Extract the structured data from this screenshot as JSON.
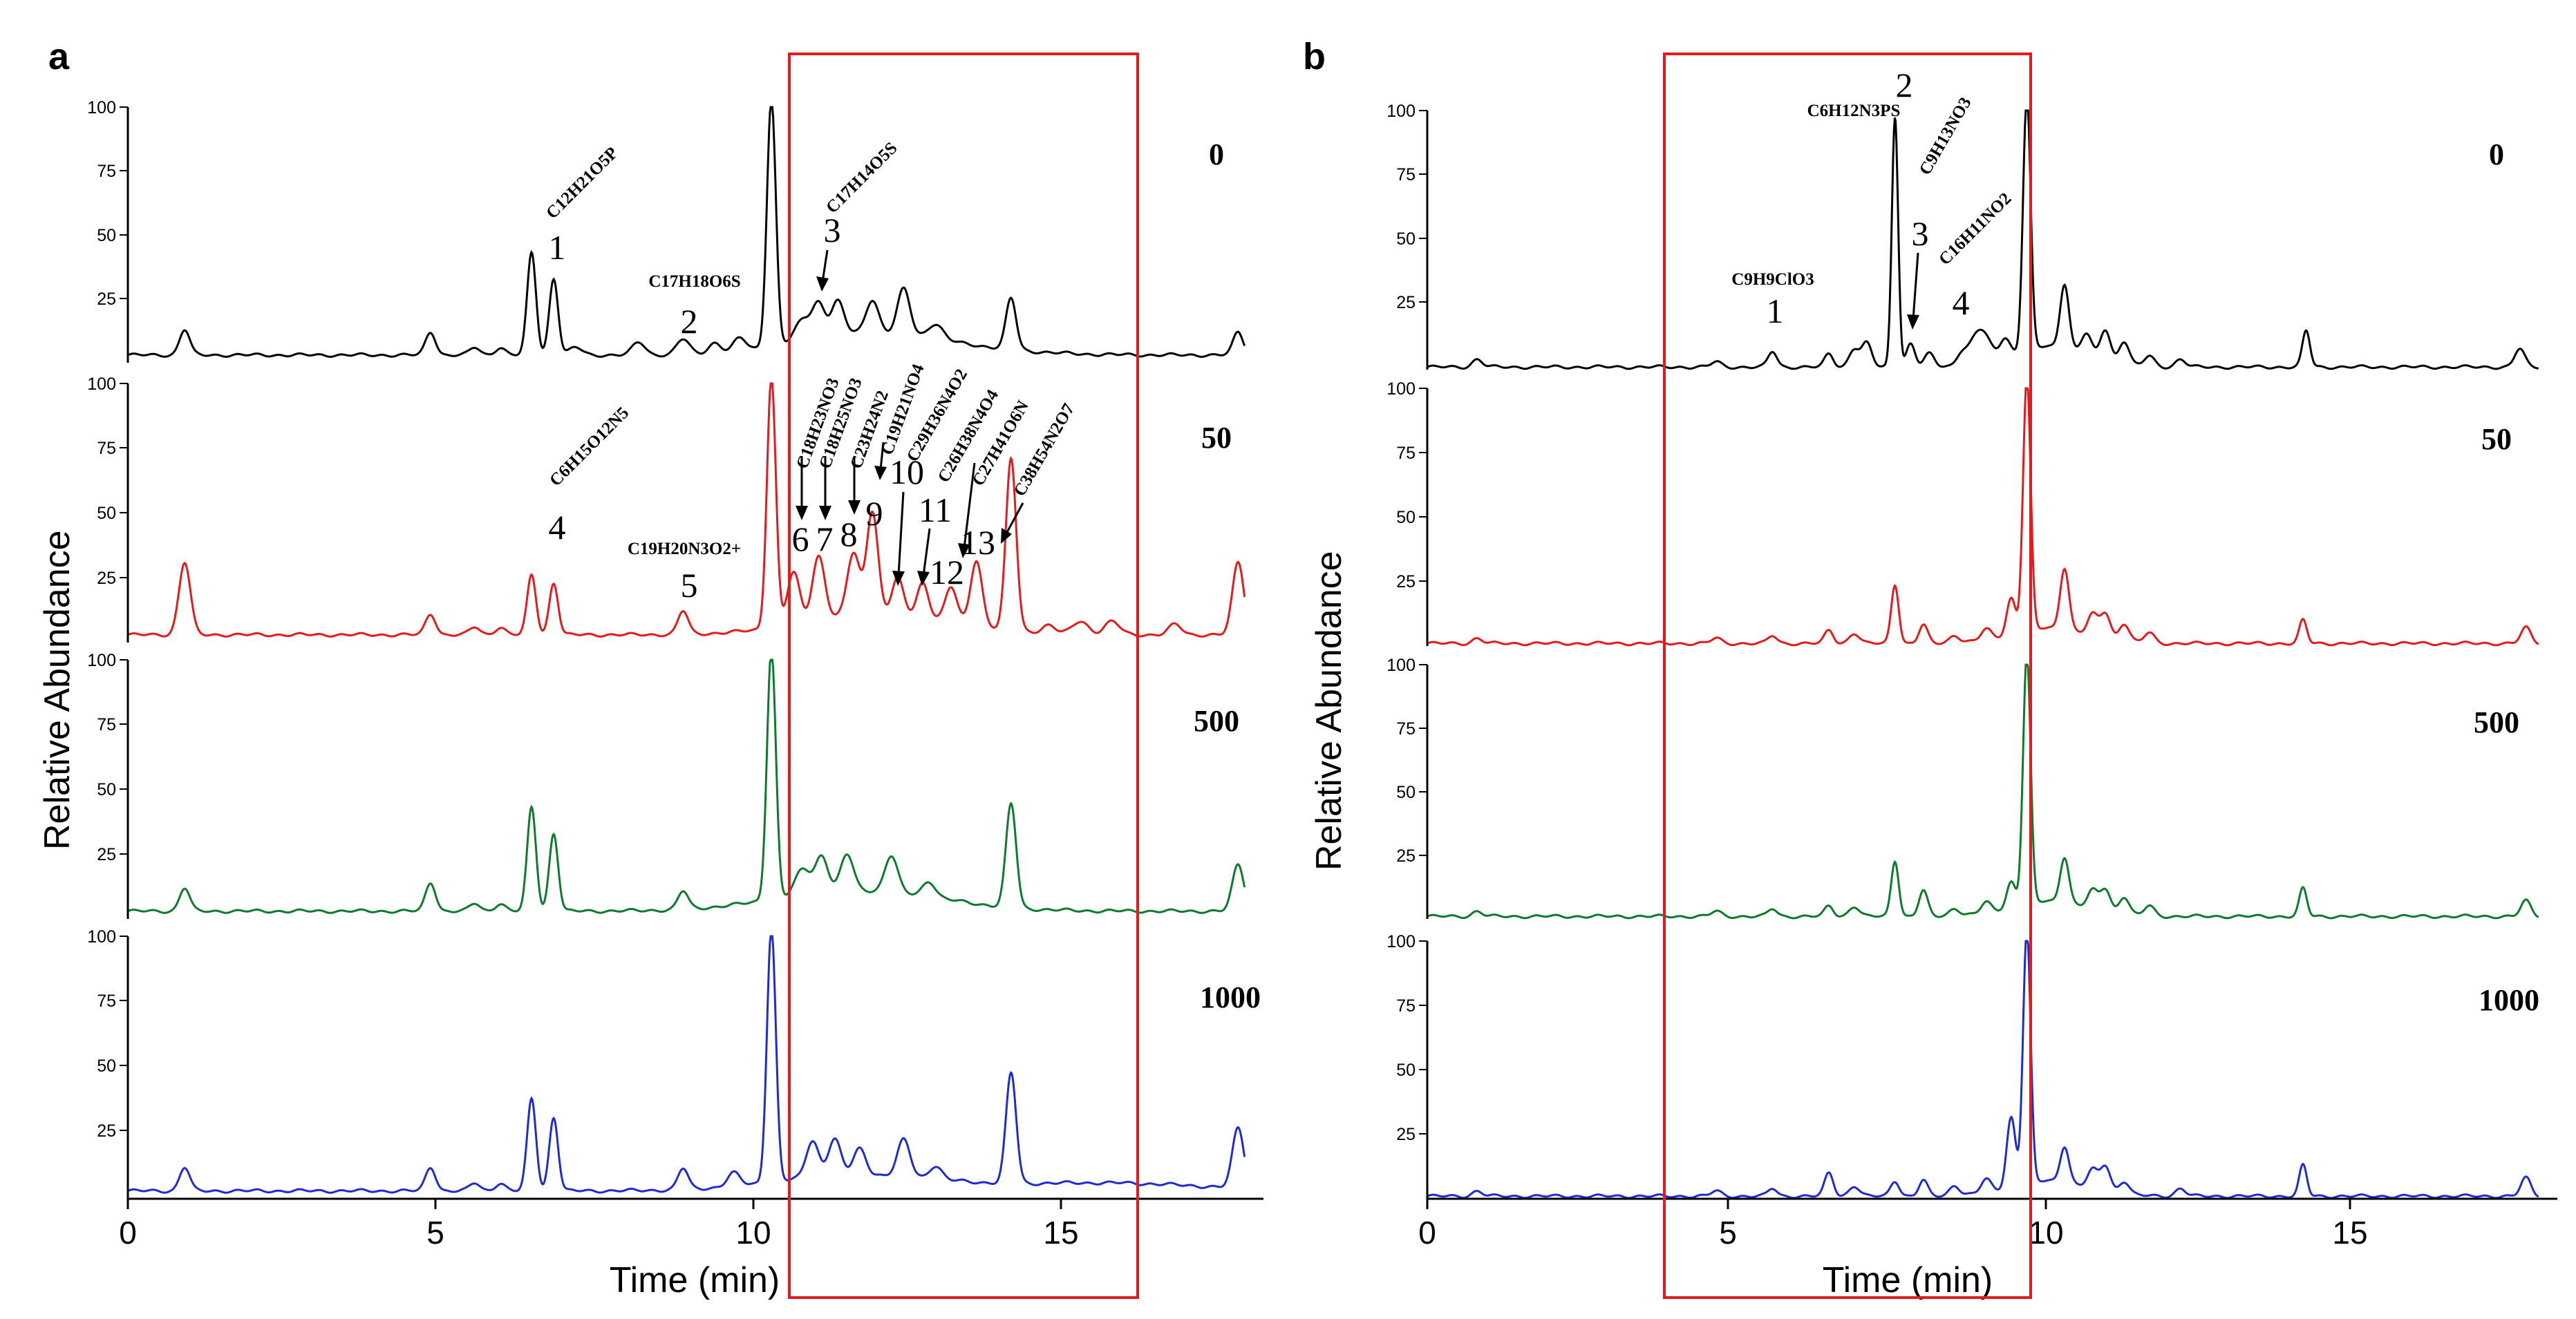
{
  "chart_data": [
    {
      "type": "line",
      "panel": "a",
      "xlabel": "Time (min)",
      "ylabel": "Relative Abundance",
      "xlim": [
        0,
        18
      ],
      "x_ticks": [
        "0",
        "5",
        "10",
        "15"
      ],
      "y_ticks": [
        "25",
        "50",
        "75",
        "100"
      ],
      "y_top_tick": "100",
      "highlight_range": [
        10.5,
        16
      ],
      "traces": [
        {
          "name": "0",
          "color": "#000000",
          "baseline": 3,
          "peaks": [
            [
              0.9,
              10,
              0.08
            ],
            [
              4.8,
              9,
              0.08
            ],
            [
              5.5,
              3,
              0.08
            ],
            [
              5.9,
              3,
              0.08
            ],
            [
              6.4,
              40,
              0.07
            ],
            [
              6.75,
              30,
              0.07
            ],
            [
              7.1,
              3,
              0.1
            ],
            [
              8.1,
              5,
              0.1
            ],
            [
              8.8,
              6,
              0.1
            ],
            [
              9.3,
              4,
              0.1
            ],
            [
              9.7,
              5,
              0.1
            ],
            [
              10.2,
              97,
              0.07
            ],
            [
              10.7,
              8,
              0.12
            ],
            [
              10.95,
              13,
              0.1
            ],
            [
              11.25,
              13,
              0.1
            ],
            [
              11.8,
              13,
              0.1
            ],
            [
              12.3,
              18,
              0.1
            ],
            [
              12.8,
              6,
              0.12
            ],
            [
              14.0,
              20,
              0.08
            ],
            [
              17.6,
              9,
              0.08
            ]
          ],
          "broad": [
            [
              11.4,
              6,
              1.0
            ],
            [
              12.6,
              4,
              1.2
            ]
          ]
        },
        {
          "name": "50",
          "color": "#e41a1c",
          "baseline": 3,
          "peaks": [
            [
              0.9,
              28,
              0.09
            ],
            [
              4.8,
              8,
              0.08
            ],
            [
              5.5,
              3,
              0.08
            ],
            [
              5.9,
              3,
              0.08
            ],
            [
              6.4,
              23,
              0.07
            ],
            [
              6.75,
              20,
              0.07
            ],
            [
              8.8,
              9,
              0.08
            ],
            [
              10.2,
              97,
              0.07
            ],
            [
              10.55,
              20,
              0.1
            ],
            [
              10.95,
              25,
              0.1
            ],
            [
              11.5,
              24,
              0.1
            ],
            [
              11.8,
              40,
              0.09
            ],
            [
              12.2,
              14,
              0.09
            ],
            [
              12.6,
              13,
              0.09
            ],
            [
              13.05,
              13,
              0.09
            ],
            [
              13.45,
              25,
              0.09
            ],
            [
              14.0,
              66,
              0.08
            ],
            [
              14.6,
              3,
              0.1
            ],
            [
              15.1,
              5,
              0.12
            ],
            [
              15.6,
              5,
              0.12
            ],
            [
              16.6,
              4,
              0.1
            ],
            [
              17.6,
              28,
              0.09
            ]
          ],
          "broad": [
            [
              12.0,
              8,
              1.2
            ]
          ]
        },
        {
          "name": "500",
          "color": "#0e7a2e",
          "baseline": 3,
          "peaks": [
            [
              0.9,
              9,
              0.08
            ],
            [
              4.8,
              11,
              0.08
            ],
            [
              5.5,
              3,
              0.08
            ],
            [
              5.9,
              3,
              0.08
            ],
            [
              6.4,
              40,
              0.07
            ],
            [
              6.75,
              30,
              0.07
            ],
            [
              8.8,
              7,
              0.08
            ],
            [
              10.2,
              97,
              0.07
            ],
            [
              10.7,
              10,
              0.12
            ],
            [
              11.0,
              14,
              0.1
            ],
            [
              11.4,
              14,
              0.1
            ],
            [
              12.1,
              14,
              0.1
            ],
            [
              12.7,
              6,
              0.1
            ],
            [
              14.0,
              40,
              0.08
            ],
            [
              17.6,
              18,
              0.09
            ]
          ],
          "broad": [
            [
              11.6,
              8,
              1.3
            ]
          ]
        },
        {
          "name": "1000",
          "color": "#1f2bd1",
          "baseline": 3,
          "peaks": [
            [
              0.9,
              9,
              0.08
            ],
            [
              4.8,
              9,
              0.08
            ],
            [
              5.5,
              3,
              0.08
            ],
            [
              5.9,
              3,
              0.08
            ],
            [
              6.4,
              35,
              0.07
            ],
            [
              6.75,
              28,
              0.07
            ],
            [
              8.8,
              8,
              0.08
            ],
            [
              9.6,
              5,
              0.1
            ],
            [
              10.2,
              97,
              0.07
            ],
            [
              10.85,
              14,
              0.1
            ],
            [
              11.2,
              14,
              0.1
            ],
            [
              11.6,
              10,
              0.1
            ],
            [
              12.3,
              14,
              0.1
            ],
            [
              12.8,
              5,
              0.1
            ],
            [
              14.0,
              42,
              0.08
            ],
            [
              17.6,
              23,
              0.09
            ]
          ],
          "broad": [
            [
              11.6,
              6,
              1.3
            ],
            [
              15.5,
              3,
              1.5
            ]
          ]
        }
      ],
      "annotations": [
        {
          "id": "1",
          "formula": "C12H21O5P",
          "trace": "0",
          "time": 6.75
        },
        {
          "id": "2",
          "formula": "C17H18O6S",
          "trace": "0",
          "time": 8.8
        },
        {
          "id": "3",
          "formula": "C17H14O5S",
          "trace": "0",
          "time": 11.0
        },
        {
          "id": "4",
          "formula": "C6H15O12N5",
          "trace": "50",
          "time": 6.75
        },
        {
          "id": "5",
          "formula": "C19H20N3O2+",
          "trace": "50",
          "time": 8.8
        },
        {
          "id": "6",
          "formula": "C18H23NO3",
          "trace": "50",
          "time": 10.7
        },
        {
          "id": "7",
          "formula": "C18H25NO3",
          "trace": "50",
          "time": 11.05
        },
        {
          "id": "8",
          "formula": "C23H24N2",
          "trace": "50",
          "time": 11.4
        },
        {
          "id": "9",
          "formula": "C19H21NO4",
          "trace": "50",
          "time": 11.8
        },
        {
          "id": "10",
          "formula": "C29H36N4O2",
          "trace": "50",
          "time": 12.2
        },
        {
          "id": "11",
          "formula": "C26H38N4O4",
          "trace": "50",
          "time": 12.6
        },
        {
          "id": "12",
          "formula": "C27H41O6N",
          "trace": "50",
          "time": 13.1
        },
        {
          "id": "13",
          "formula": "C38H54N2O7",
          "trace": "50",
          "time": 13.9
        }
      ]
    },
    {
      "type": "line",
      "panel": "b",
      "xlabel": "Time (min)",
      "ylabel": "Relative Abundance",
      "xlim": [
        0,
        18
      ],
      "x_ticks": [
        "0",
        "5",
        "10",
        "15"
      ],
      "y_ticks": [
        "25",
        "50",
        "75",
        "100"
      ],
      "y_top_tick": "100",
      "highlight_range": [
        3.7,
        9.4
      ],
      "traces": [
        {
          "name": "0",
          "color": "#000000",
          "baseline": 1,
          "peaks": [
            [
              0.8,
              3,
              0.08
            ],
            [
              4.6,
              2,
              0.08
            ],
            [
              5.5,
              6,
              0.07
            ],
            [
              6.4,
              5,
              0.07
            ],
            [
              6.8,
              7,
              0.08
            ],
            [
              7.0,
              9,
              0.08
            ],
            [
              7.45,
              97,
              0.05
            ],
            [
              7.7,
              9,
              0.07
            ],
            [
              8.0,
              5,
              0.08
            ],
            [
              8.5,
              4,
              0.08
            ],
            [
              8.8,
              13,
              0.15
            ],
            [
              9.2,
              7,
              0.08
            ],
            [
              9.55,
              98,
              0.06
            ],
            [
              10.15,
              25,
              0.07
            ],
            [
              10.5,
              8,
              0.08
            ],
            [
              10.8,
              12,
              0.08
            ],
            [
              11.1,
              9,
              0.08
            ],
            [
              11.5,
              4,
              0.08
            ],
            [
              12.0,
              3,
              0.08
            ],
            [
              14.0,
              14,
              0.06
            ],
            [
              17.4,
              7,
              0.08
            ]
          ],
          "broad": [
            [
              9.9,
              8,
              0.6
            ]
          ]
        },
        {
          "name": "50",
          "color": "#e41a1c",
          "baseline": 1,
          "peaks": [
            [
              0.8,
              2,
              0.08
            ],
            [
              4.6,
              2,
              0.08
            ],
            [
              5.5,
              3,
              0.07
            ],
            [
              6.4,
              5,
              0.07
            ],
            [
              6.8,
              4,
              0.08
            ],
            [
              7.45,
              23,
              0.06
            ],
            [
              7.9,
              7,
              0.07
            ],
            [
              8.4,
              3,
              0.08
            ],
            [
              8.9,
              4,
              0.08
            ],
            [
              9.3,
              14,
              0.07
            ],
            [
              9.55,
              98,
              0.06
            ],
            [
              10.15,
              24,
              0.07
            ],
            [
              10.6,
              8,
              0.08
            ],
            [
              10.8,
              10,
              0.08
            ],
            [
              11.1,
              7,
              0.08
            ],
            [
              11.5,
              4,
              0.08
            ],
            [
              13.95,
              9,
              0.06
            ],
            [
              17.5,
              6,
              0.08
            ]
          ],
          "broad": [
            [
              9.9,
              6,
              0.6
            ]
          ]
        },
        {
          "name": "500",
          "color": "#0e7a2e",
          "baseline": 1,
          "peaks": [
            [
              0.8,
              2,
              0.08
            ],
            [
              4.6,
              2,
              0.08
            ],
            [
              5.5,
              3,
              0.07
            ],
            [
              6.4,
              4,
              0.07
            ],
            [
              6.8,
              4,
              0.08
            ],
            [
              7.45,
              22,
              0.06
            ],
            [
              7.9,
              10,
              0.07
            ],
            [
              8.4,
              3,
              0.08
            ],
            [
              8.9,
              4,
              0.08
            ],
            [
              9.3,
              10,
              0.07
            ],
            [
              9.55,
              98,
              0.06
            ],
            [
              10.15,
              18,
              0.07
            ],
            [
              10.6,
              7,
              0.08
            ],
            [
              10.8,
              9,
              0.08
            ],
            [
              11.1,
              7,
              0.08
            ],
            [
              11.5,
              4,
              0.08
            ],
            [
              13.95,
              11,
              0.06
            ],
            [
              17.5,
              6,
              0.08
            ]
          ],
          "broad": [
            [
              9.9,
              6,
              0.6
            ]
          ]
        },
        {
          "name": "1000",
          "color": "#1f2bd1",
          "baseline": 1,
          "peaks": [
            [
              0.8,
              2,
              0.08
            ],
            [
              4.6,
              2,
              0.08
            ],
            [
              5.5,
              3,
              0.07
            ],
            [
              6.4,
              9,
              0.07
            ],
            [
              6.8,
              4,
              0.08
            ],
            [
              7.45,
              6,
              0.07
            ],
            [
              7.9,
              6,
              0.07
            ],
            [
              8.4,
              4,
              0.08
            ],
            [
              8.9,
              5,
              0.08
            ],
            [
              9.3,
              27,
              0.07
            ],
            [
              9.55,
              98,
              0.06
            ],
            [
              10.15,
              14,
              0.07
            ],
            [
              10.6,
              7,
              0.08
            ],
            [
              10.8,
              10,
              0.08
            ],
            [
              11.1,
              5,
              0.08
            ],
            [
              12.0,
              3,
              0.08
            ],
            [
              13.95,
              12,
              0.06
            ],
            [
              17.5,
              7,
              0.08
            ]
          ],
          "broad": [
            [
              9.9,
              6,
              0.6
            ]
          ]
        }
      ],
      "annotations": [
        {
          "id": "1",
          "formula": "C9H9ClO3",
          "trace": "0",
          "time": 5.5
        },
        {
          "id": "2",
          "formula": "C6H12N3PS",
          "trace": "0",
          "time": 7.45
        },
        {
          "id": "3",
          "formula": "C9H13NO3",
          "trace": "0",
          "time": 7.7
        },
        {
          "id": "4",
          "formula": "C16H11NO2",
          "trace": "0",
          "time": 8.8
        }
      ]
    }
  ]
}
